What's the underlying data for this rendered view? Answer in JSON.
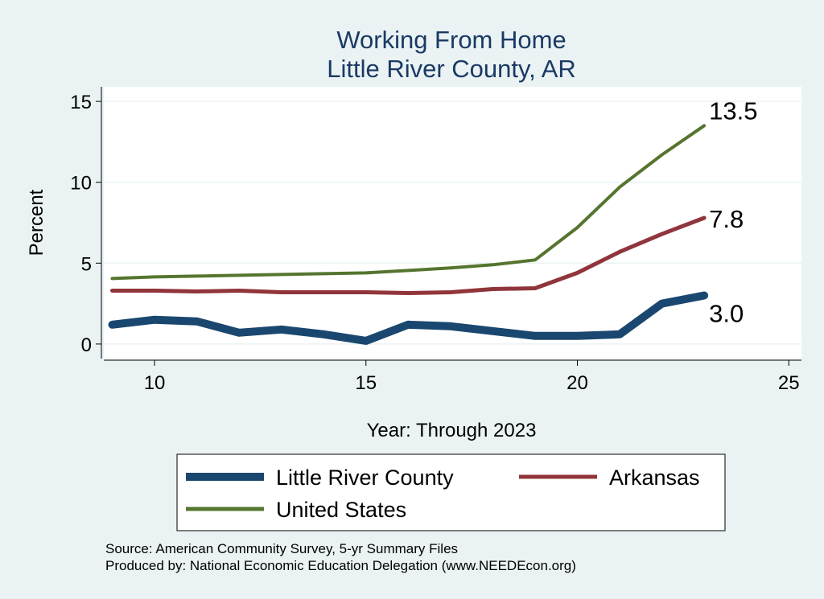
{
  "chart_data": {
    "type": "line",
    "title": [
      "Working From Home",
      "Little River County, AR"
    ],
    "xlabel": "Year: Through 2023",
    "ylabel": "Percent",
    "xlim": [
      8.8,
      25.3
    ],
    "ylim": [
      -0.9,
      15.9
    ],
    "x_ticks": [
      10,
      15,
      20,
      25
    ],
    "y_ticks": [
      0,
      5,
      10,
      15
    ],
    "grid": true,
    "legend_position": "bottom",
    "series": [
      {
        "name": "Little River County",
        "color": "#1a476f",
        "x": [
          9,
          10,
          11,
          12,
          13,
          14,
          15,
          16,
          17,
          18,
          19,
          20,
          21,
          22,
          23
        ],
        "y": [
          1.2,
          1.5,
          1.4,
          0.7,
          0.9,
          0.6,
          0.2,
          1.2,
          1.1,
          0.8,
          0.5,
          0.5,
          0.6,
          2.5,
          3.0
        ],
        "end_label": "3.0"
      },
      {
        "name": "Arkansas",
        "color": "#90353b",
        "x": [
          9,
          10,
          11,
          12,
          13,
          14,
          15,
          16,
          17,
          18,
          19,
          20,
          21,
          22,
          23
        ],
        "y": [
          3.3,
          3.3,
          3.25,
          3.3,
          3.2,
          3.2,
          3.2,
          3.15,
          3.2,
          3.4,
          3.45,
          4.4,
          5.7,
          6.8,
          7.8
        ],
        "end_label": "7.8"
      },
      {
        "name": "United States",
        "color": "#55752f",
        "x": [
          9,
          10,
          11,
          12,
          13,
          14,
          15,
          16,
          17,
          18,
          19,
          20,
          21,
          22,
          23
        ],
        "y": [
          4.05,
          4.15,
          4.2,
          4.25,
          4.3,
          4.35,
          4.4,
          4.55,
          4.7,
          4.9,
          5.2,
          7.2,
          9.7,
          11.7,
          13.5
        ],
        "end_label": "13.5"
      }
    ]
  },
  "notes": {
    "source": "Source: American Community Survey, 5-yr Summary Files",
    "produced": "Produced by: National Economic Education Delegation (www.NEEDEcon.org)"
  }
}
